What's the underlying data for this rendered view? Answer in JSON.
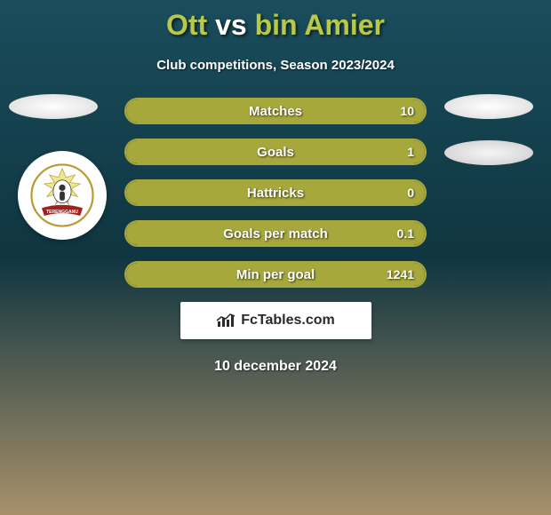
{
  "background": {
    "gradient_top": "#1a4d5c",
    "gradient_mid": "#0f3540",
    "gradient_bottom": "#a8906a"
  },
  "title": {
    "left": "Ott",
    "vs": "vs",
    "right": "bin Amier",
    "left_color": "#b8c94a",
    "right_color": "#b8c94a",
    "vs_color": "#ffffff",
    "fontsize": 32
  },
  "subtitle": {
    "text": "Club competitions, Season 2023/2024",
    "color": "#ffffff",
    "fontsize": 15
  },
  "side_ovals": {
    "bg": "#ffffff"
  },
  "badge": {
    "bg": "#ffffff",
    "ring_color": "#b89a2e",
    "banner_color": "#a02020",
    "banner_text": "TERENGGANU"
  },
  "bars": {
    "border_color": "#a7a83c",
    "fill_color": "#a7a83c",
    "track_color": "transparent",
    "text_color": "#ffffff",
    "height": 30,
    "radius": 16,
    "items": [
      {
        "label": "Matches",
        "value": "10",
        "fill_pct": 100
      },
      {
        "label": "Goals",
        "value": "1",
        "fill_pct": 100
      },
      {
        "label": "Hattricks",
        "value": "0",
        "fill_pct": 100
      },
      {
        "label": "Goals per match",
        "value": "0.1",
        "fill_pct": 100
      },
      {
        "label": "Min per goal",
        "value": "1241",
        "fill_pct": 100
      }
    ]
  },
  "brand": {
    "text_prefix": "Fc",
    "text_suffix": "Tables.com",
    "color": "#2a2a2a",
    "bg": "#ffffff"
  },
  "date": {
    "text": "10 december 2024",
    "color": "#ffffff",
    "fontsize": 16
  }
}
